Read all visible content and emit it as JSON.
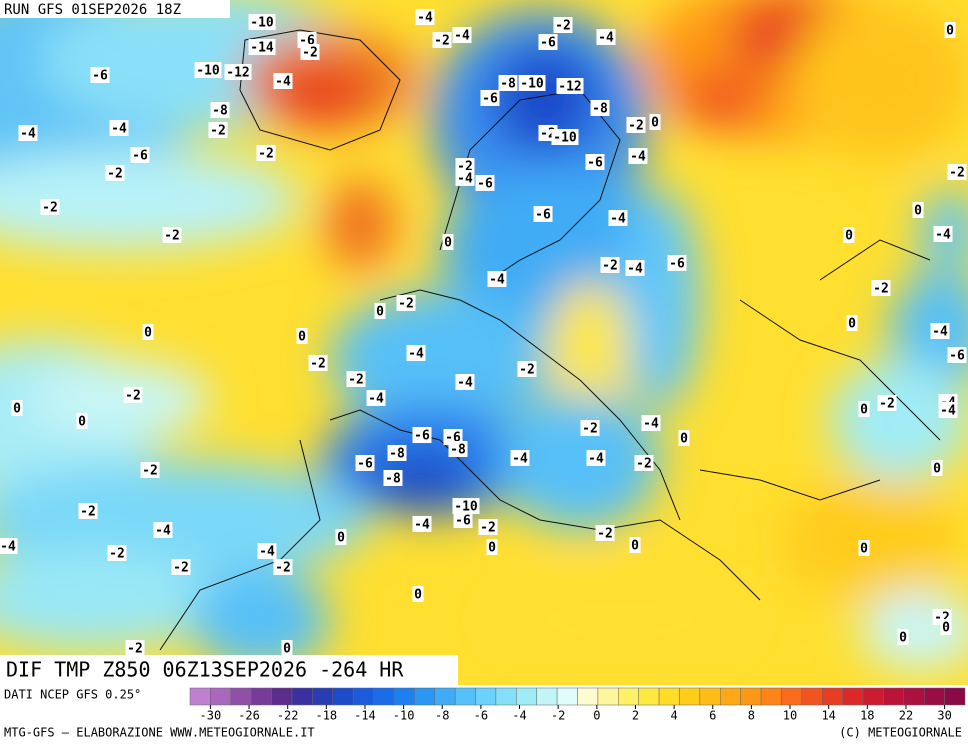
{
  "header": {
    "run": "RUN GFS 01SEP2026 18Z"
  },
  "map": {
    "title": "DIF TMP Z850 06Z13SEP2026 -264 HR",
    "contour_labels": [
      -10,
      -14,
      -6,
      -2,
      -10,
      -12,
      -4,
      -6,
      -8,
      -2,
      -4,
      -4,
      -6,
      -2,
      -2,
      -2,
      -2,
      0,
      0,
      -2,
      0,
      0,
      -2,
      -2,
      -2,
      -4,
      -2,
      -2,
      -4,
      -2,
      0,
      0,
      -2,
      0,
      -4,
      -4,
      -2,
      -4,
      -2,
      -6,
      -4,
      -8,
      -10,
      -12,
      -6,
      -8,
      -2,
      0,
      -2,
      -10,
      -6,
      -4,
      -2,
      -4,
      -6,
      -6,
      -4,
      0,
      -2,
      -4,
      -6,
      -4,
      -2,
      0,
      -4,
      -2,
      -4,
      -4,
      -2,
      -6,
      -6,
      -8,
      -6,
      -8,
      -8,
      -10,
      -6,
      -4,
      -2,
      0,
      -2,
      0,
      -4,
      -2,
      -4,
      0,
      -4,
      -2,
      0,
      0,
      -4,
      0,
      -2,
      0,
      -4,
      -6,
      0,
      -2,
      -4,
      -4,
      0,
      0,
      -2,
      0,
      0,
      -2
    ]
  },
  "footer": {
    "source": "DATI NCEP GFS 0.25°",
    "credit": "MTG-GFS — ELABORAZIONE WWW.METEOGIORNALE.IT",
    "copyright": "(C) METEOGIORNALE"
  },
  "colorbar": {
    "colors": [
      "#c080d0",
      "#a868c0",
      "#9050a8",
      "#783c98",
      "#5c2c8c",
      "#3a30a0",
      "#2a3cb4",
      "#1e4cc8",
      "#1a5cdc",
      "#1a6ce8",
      "#1e80f0",
      "#2c96f4",
      "#40acf6",
      "#56c0f8",
      "#6cd2fa",
      "#84e0f8",
      "#a0ecf6",
      "#c0f6f8",
      "#e2fcfc",
      "#fffbd0",
      "#fff59a",
      "#fff066",
      "#ffe840",
      "#ffdc28",
      "#ffcc1a",
      "#ffbc16",
      "#ffaa14",
      "#ff9814",
      "#ff8418",
      "#fa6c1c",
      "#f25420",
      "#e83c24",
      "#dc2828",
      "#cc1c30",
      "#bc1438",
      "#aa1040",
      "#9a0c44",
      "#8a0a48"
    ],
    "ticks": [
      -30,
      -26,
      -22,
      -18,
      -14,
      -10,
      -8,
      -6,
      -4,
      -2,
      0,
      2,
      4,
      6,
      8,
      10,
      14,
      18,
      22,
      30
    ]
  }
}
